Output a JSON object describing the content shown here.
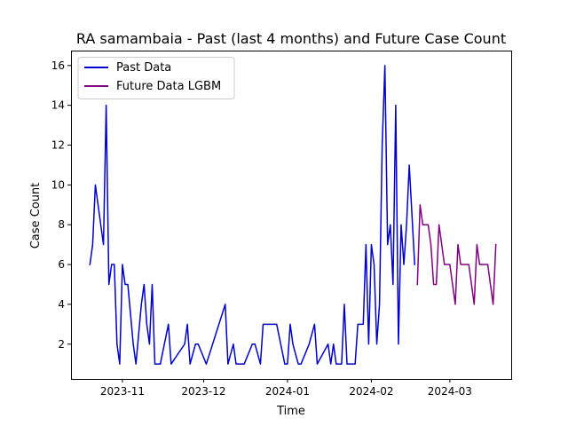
{
  "chart_data": {
    "type": "line",
    "title": "RA samambaia - Past (last 4 months) and Future Case Count",
    "xlabel": "Time",
    "ylabel": "Case Count",
    "xlim": [
      "2023-10-13",
      "2024-03-24"
    ],
    "ylim": [
      0.25,
      16.75
    ],
    "grid": false,
    "legend_position": "top-left",
    "x_ticks": [
      {
        "date": "2023-11-01",
        "label": "2023-11"
      },
      {
        "date": "2023-12-01",
        "label": "2023-12"
      },
      {
        "date": "2024-01-01",
        "label": "2024-01"
      },
      {
        "date": "2024-02-01",
        "label": "2024-02"
      },
      {
        "date": "2024-03-01",
        "label": "2024-03"
      }
    ],
    "y_ticks": [
      2,
      4,
      6,
      8,
      10,
      12,
      14,
      16
    ],
    "series": [
      {
        "name": "Past Data",
        "color": "#0000cc",
        "points": [
          [
            "2023-10-20",
            6
          ],
          [
            "2023-10-21",
            7
          ],
          [
            "2023-10-22",
            10
          ],
          [
            "2023-10-24",
            8
          ],
          [
            "2023-10-25",
            7
          ],
          [
            "2023-10-26",
            14
          ],
          [
            "2023-10-27",
            5
          ],
          [
            "2023-10-28",
            6
          ],
          [
            "2023-10-29",
            6
          ],
          [
            "2023-10-30",
            2
          ],
          [
            "2023-10-31",
            1
          ],
          [
            "2023-11-01",
            6
          ],
          [
            "2023-11-02",
            5
          ],
          [
            "2023-11-03",
            5
          ],
          [
            "2023-11-05",
            2
          ],
          [
            "2023-11-06",
            1
          ],
          [
            "2023-11-08",
            4
          ],
          [
            "2023-11-09",
            5
          ],
          [
            "2023-11-10",
            3
          ],
          [
            "2023-11-11",
            2
          ],
          [
            "2023-11-12",
            5
          ],
          [
            "2023-11-13",
            1
          ],
          [
            "2023-11-15",
            1
          ],
          [
            "2023-11-18",
            3
          ],
          [
            "2023-11-19",
            1
          ],
          [
            "2023-11-24",
            2
          ],
          [
            "2023-11-25",
            3
          ],
          [
            "2023-11-26",
            1
          ],
          [
            "2023-11-28",
            2
          ],
          [
            "2023-11-29",
            2
          ],
          [
            "2023-12-02",
            1
          ],
          [
            "2023-12-09",
            4
          ],
          [
            "2023-12-10",
            1
          ],
          [
            "2023-12-12",
            2
          ],
          [
            "2023-12-13",
            1
          ],
          [
            "2023-12-16",
            1
          ],
          [
            "2023-12-19",
            2
          ],
          [
            "2023-12-20",
            2
          ],
          [
            "2023-12-22",
            1
          ],
          [
            "2023-12-23",
            3
          ],
          [
            "2023-12-28",
            3
          ],
          [
            "2023-12-31",
            1
          ],
          [
            "2024-01-01",
            1
          ],
          [
            "2024-01-02",
            3
          ],
          [
            "2024-01-03",
            2
          ],
          [
            "2024-01-05",
            1
          ],
          [
            "2024-01-06",
            1
          ],
          [
            "2024-01-09",
            2
          ],
          [
            "2024-01-11",
            3
          ],
          [
            "2024-01-12",
            1
          ],
          [
            "2024-01-16",
            2
          ],
          [
            "2024-01-17",
            1
          ],
          [
            "2024-01-18",
            2
          ],
          [
            "2024-01-19",
            1
          ],
          [
            "2024-01-21",
            1
          ],
          [
            "2024-01-22",
            4
          ],
          [
            "2024-01-23",
            1
          ],
          [
            "2024-01-26",
            1
          ],
          [
            "2024-01-27",
            3
          ],
          [
            "2024-01-29",
            3
          ],
          [
            "2024-01-30",
            7
          ],
          [
            "2024-01-31",
            2
          ],
          [
            "2024-02-01",
            7
          ],
          [
            "2024-02-02",
            6
          ],
          [
            "2024-02-03",
            2
          ],
          [
            "2024-02-04",
            4
          ],
          [
            "2024-02-05",
            12
          ],
          [
            "2024-02-06",
            16
          ],
          [
            "2024-02-07",
            7
          ],
          [
            "2024-02-08",
            8
          ],
          [
            "2024-02-09",
            5
          ],
          [
            "2024-02-10",
            14
          ],
          [
            "2024-02-11",
            2
          ],
          [
            "2024-02-12",
            8
          ],
          [
            "2024-02-13",
            6
          ],
          [
            "2024-02-14",
            8
          ],
          [
            "2024-02-15",
            11
          ],
          [
            "2024-02-17",
            6
          ]
        ]
      },
      {
        "name": "Future Data LGBM",
        "color": "#800080",
        "points": [
          [
            "2024-02-18",
            5
          ],
          [
            "2024-02-19",
            9
          ],
          [
            "2024-02-20",
            8
          ],
          [
            "2024-02-22",
            8
          ],
          [
            "2024-02-23",
            7
          ],
          [
            "2024-02-24",
            5
          ],
          [
            "2024-02-25",
            5
          ],
          [
            "2024-02-26",
            8
          ],
          [
            "2024-02-28",
            6
          ],
          [
            "2024-03-01",
            6
          ],
          [
            "2024-03-03",
            4
          ],
          [
            "2024-03-04",
            7
          ],
          [
            "2024-03-05",
            6
          ],
          [
            "2024-03-07",
            6
          ],
          [
            "2024-03-08",
            6
          ],
          [
            "2024-03-10",
            4
          ],
          [
            "2024-03-11",
            7
          ],
          [
            "2024-03-12",
            6
          ],
          [
            "2024-03-15",
            6
          ],
          [
            "2024-03-17",
            4
          ],
          [
            "2024-03-18",
            7
          ]
        ]
      }
    ]
  }
}
